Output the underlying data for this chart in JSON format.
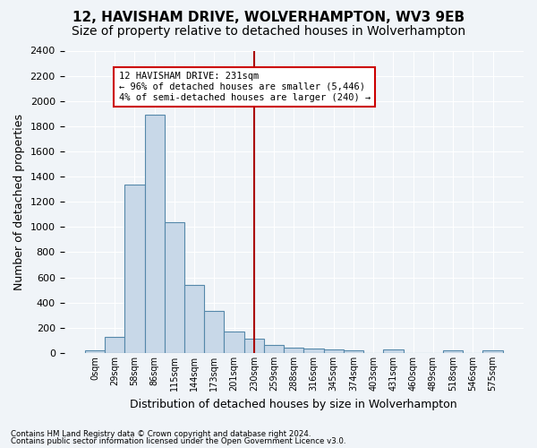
{
  "title": "12, HAVISHAM DRIVE, WOLVERHAMPTON, WV3 9EB",
  "subtitle": "Size of property relative to detached houses in Wolverhampton",
  "xlabel": "Distribution of detached houses by size in Wolverhampton",
  "ylabel": "Number of detached properties",
  "bar_values": [
    20,
    125,
    1340,
    1890,
    1040,
    540,
    335,
    170,
    110,
    65,
    40,
    35,
    30,
    20,
    0,
    25,
    0,
    0,
    20,
    0,
    20
  ],
  "bar_labels": [
    "0sqm",
    "29sqm",
    "58sqm",
    "86sqm",
    "115sqm",
    "144sqm",
    "173sqm",
    "201sqm",
    "230sqm",
    "259sqm",
    "288sqm",
    "316sqm",
    "345sqm",
    "374sqm",
    "403sqm",
    "431sqm",
    "460sqm",
    "489sqm",
    "518sqm",
    "546sqm",
    "575sqm"
  ],
  "bar_color": "#c8d8e8",
  "bar_edge_color": "#5588aa",
  "vline_x": 8,
  "vline_color": "#aa0000",
  "ylim": [
    0,
    2400
  ],
  "yticks": [
    0,
    200,
    400,
    600,
    800,
    1000,
    1200,
    1400,
    1600,
    1800,
    2000,
    2200,
    2400
  ],
  "annotation_text": "12 HAVISHAM DRIVE: 231sqm\n← 96% of detached houses are smaller (5,446)\n4% of semi-detached houses are larger (240) →",
  "annotation_box_color": "#cc0000",
  "footnote1": "Contains HM Land Registry data © Crown copyright and database right 2024.",
  "footnote2": "Contains public sector information licensed under the Open Government Licence v3.0.",
  "bg_color": "#f0f4f8",
  "grid_color": "#ffffff",
  "title_fontsize": 11,
  "subtitle_fontsize": 10,
  "xlabel_fontsize": 9,
  "ylabel_fontsize": 9
}
